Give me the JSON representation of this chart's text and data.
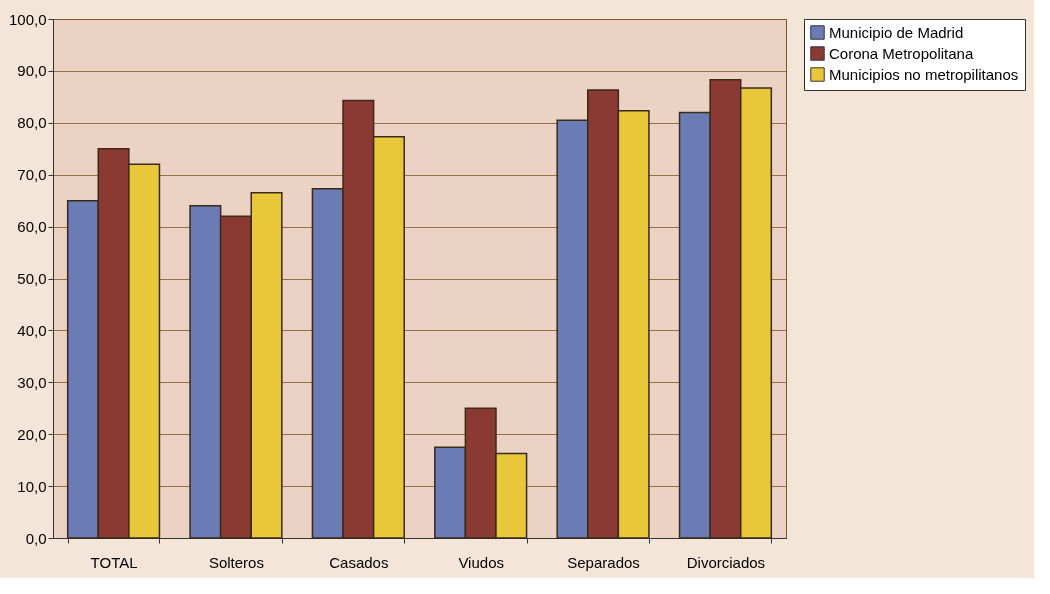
{
  "chart_data": {
    "type": "bar",
    "categories": [
      "TOTAL",
      "Solteros",
      "Casados",
      "Viudos",
      "Separados",
      "Divorciados"
    ],
    "series": [
      {
        "name": "Municipio de Madrid",
        "color": "#6a7bb5",
        "values": [
          65,
          64,
          67.3,
          17.5,
          80.5,
          82
        ]
      },
      {
        "name": "Corona Metropolitana",
        "color": "#8b3a33",
        "values": [
          75,
          62,
          84.3,
          25,
          86.3,
          88.3
        ]
      },
      {
        "name": "Municipios no metropilitanos",
        "color": "#e8c83a",
        "values": [
          72,
          66.5,
          77.3,
          16.3,
          82.3,
          86.7
        ]
      }
    ],
    "ylim": [
      0,
      100
    ],
    "yticks": [
      {
        "value": 0,
        "label": "0,0"
      },
      {
        "value": 10,
        "label": "10,0"
      },
      {
        "value": 20,
        "label": "20,0"
      },
      {
        "value": 30,
        "label": "30,0"
      },
      {
        "value": 40,
        "label": "40,0"
      },
      {
        "value": 50,
        "label": "50,0"
      },
      {
        "value": 60,
        "label": "60,0"
      },
      {
        "value": 70,
        "label": "70,0"
      },
      {
        "value": 80,
        "label": "80,0"
      },
      {
        "value": 90,
        "label": "90,0"
      },
      {
        "value": 100,
        "label": "100,0"
      }
    ],
    "grid": "y",
    "legend": "right"
  }
}
